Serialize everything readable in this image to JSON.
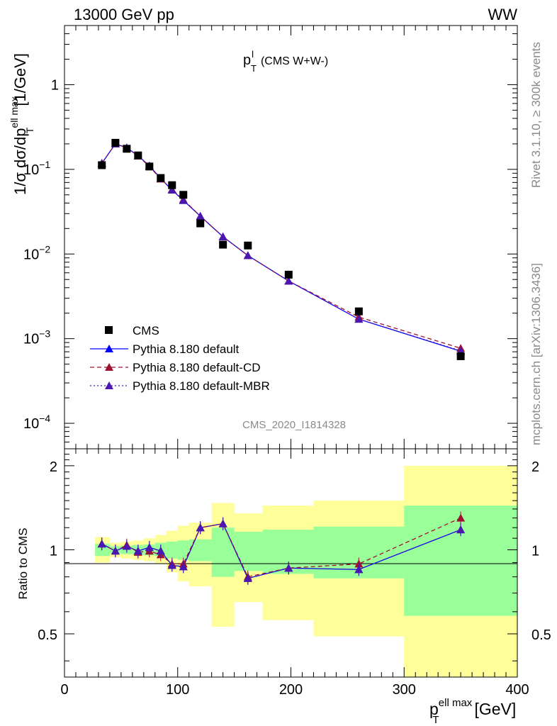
{
  "header": {
    "left": "13000 GeV pp",
    "right": "WW"
  },
  "side": {
    "rivet": "Rivet 3.1.10, ≥ 300k events",
    "mcplots": "mcplots.cern.ch [arXiv:1306.3436]"
  },
  "chart_data": [
    {
      "type": "scatter",
      "panel": "main",
      "title_main": "p",
      "title_sup": "l",
      "title_sub": "T",
      "title_rest": "(CMS W+W-)",
      "analysis_label": "CMS_2020_I1814328",
      "ylabel_pre": "1/σ dσ/dp",
      "ylabel_sup": "ell max",
      "ylabel_sub": "T",
      "ylabel_unit": "[1/GeV]",
      "xlim": [
        0,
        400
      ],
      "ylim": [
        5e-05,
        5
      ],
      "yscale": "log",
      "y_ticks": [
        {
          "v": 1,
          "label": "1"
        },
        {
          "v": 0.1,
          "base": "10",
          "exp": "−1"
        },
        {
          "v": 0.01,
          "base": "10",
          "exp": "−2"
        },
        {
          "v": 0.001,
          "base": "10",
          "exp": "−3"
        },
        {
          "v": 0.0001,
          "base": "10",
          "exp": "−4"
        }
      ],
      "legend_position": "lower-left",
      "series": [
        {
          "name": "CMS",
          "style": "marker",
          "color": "#000000",
          "x": [
            33,
            45,
            55,
            65,
            75,
            85,
            95,
            105,
            120,
            140,
            162,
            198,
            260,
            350
          ],
          "y": [
            0.112,
            0.206,
            0.175,
            0.146,
            0.108,
            0.079,
            0.065,
            0.05,
            0.023,
            0.0129,
            0.0126,
            0.0057,
            0.0021,
            0.00062
          ]
        },
        {
          "name": "Pythia 8.180 default",
          "style": "solid",
          "color": "#0000ff",
          "x": [
            33,
            45,
            55,
            65,
            75,
            85,
            95,
            105,
            120,
            140,
            162,
            198,
            260,
            350
          ],
          "y": [
            0.118,
            0.2,
            0.18,
            0.145,
            0.11,
            0.078,
            0.057,
            0.043,
            0.028,
            0.016,
            0.0096,
            0.0048,
            0.0017,
            0.00071
          ]
        },
        {
          "name": "Pythia 8.180 default-CD",
          "style": "dashed",
          "color": "#a01030",
          "x": [
            33,
            45,
            55,
            65,
            75,
            85,
            95,
            105,
            120,
            140,
            162,
            198,
            260,
            350
          ],
          "y": [
            0.118,
            0.2,
            0.18,
            0.144,
            0.108,
            0.077,
            0.058,
            0.044,
            0.028,
            0.016,
            0.0096,
            0.0048,
            0.0018,
            0.00077
          ]
        },
        {
          "name": "Pythia 8.180 default-MBR",
          "style": "dotted",
          "color": "#4a18b0",
          "x": [
            33,
            45,
            55,
            65,
            75,
            85,
            95,
            105,
            120,
            140,
            162,
            198,
            260,
            350
          ],
          "y": [
            0.118,
            0.2,
            0.18,
            0.145,
            0.11,
            0.078,
            0.057,
            0.043,
            0.028,
            0.016,
            0.0096,
            0.0048,
            0.0017,
            0.00072
          ]
        }
      ]
    },
    {
      "type": "scatter",
      "panel": "ratio",
      "ylabel": "Ratio to CMS",
      "xlabel_pre": "p",
      "xlabel_sup": "ell max",
      "xlabel_sub": "T",
      "xlabel_unit": "[GeV]",
      "xlim": [
        0,
        400
      ],
      "ylim": [
        0.35,
        2.3
      ],
      "yscale": "log",
      "x_ticks": [
        0,
        100,
        200,
        300,
        400
      ],
      "y_ticks": [
        0.5,
        1,
        2
      ],
      "bands": [
        {
          "x0": 27,
          "x1": 40,
          "green": [
            0.95,
            1.05
          ],
          "yellow": [
            0.9,
            1.11
          ]
        },
        {
          "x0": 40,
          "x1": 50,
          "green": [
            0.97,
            1.03
          ],
          "yellow": [
            0.94,
            1.06
          ]
        },
        {
          "x0": 50,
          "x1": 60,
          "green": [
            0.965,
            1.035
          ],
          "yellow": [
            0.93,
            1.07
          ]
        },
        {
          "x0": 60,
          "x1": 70,
          "green": [
            0.96,
            1.04
          ],
          "yellow": [
            0.92,
            1.08
          ]
        },
        {
          "x0": 70,
          "x1": 80,
          "green": [
            0.955,
            1.045
          ],
          "yellow": [
            0.91,
            1.1
          ]
        },
        {
          "x0": 80,
          "x1": 90,
          "green": [
            0.95,
            1.06
          ],
          "yellow": [
            0.89,
            1.13
          ]
        },
        {
          "x0": 90,
          "x1": 100,
          "green": [
            0.93,
            1.07
          ],
          "yellow": [
            0.83,
            1.17
          ]
        },
        {
          "x0": 100,
          "x1": 110,
          "green": [
            0.92,
            1.08
          ],
          "yellow": [
            0.77,
            1.22
          ]
        },
        {
          "x0": 110,
          "x1": 130,
          "green": [
            0.91,
            1.09
          ],
          "yellow": [
            0.74,
            1.25
          ]
        },
        {
          "x0": 130,
          "x1": 150,
          "green": [
            0.8,
            1.2
          ],
          "yellow": [
            0.53,
            1.47
          ]
        },
        {
          "x0": 150,
          "x1": 175,
          "green": [
            0.84,
            1.16
          ],
          "yellow": [
            0.65,
            1.35
          ]
        },
        {
          "x0": 175,
          "x1": 220,
          "green": [
            0.82,
            1.18
          ],
          "yellow": [
            0.56,
            1.44
          ]
        },
        {
          "x0": 220,
          "x1": 300,
          "green": [
            0.79,
            1.21
          ],
          "yellow": [
            0.49,
            1.5
          ]
        },
        {
          "x0": 300,
          "x1": 400,
          "green": [
            0.58,
            1.44
          ],
          "yellow": [
            0.35,
            2.0
          ]
        }
      ],
      "series": [
        {
          "name": "Pythia 8.180 default",
          "style": "solid",
          "color": "#0000ff",
          "x": [
            33,
            45,
            55,
            65,
            75,
            85,
            95,
            105,
            120,
            140,
            162,
            198,
            260,
            350
          ],
          "y": [
            1.05,
            0.99,
            1.03,
            0.99,
            1.02,
            0.99,
            0.88,
            0.87,
            1.2,
            1.24,
            0.79,
            0.86,
            0.85,
            1.18
          ]
        },
        {
          "name": "Pythia 8.180 default-CD",
          "style": "dashed",
          "color": "#a01030",
          "x": [
            33,
            45,
            55,
            65,
            75,
            85,
            95,
            105,
            120,
            140,
            162,
            198,
            260,
            350
          ],
          "y": [
            1.05,
            0.99,
            1.04,
            0.98,
            0.99,
            0.96,
            0.89,
            0.89,
            1.2,
            1.24,
            0.8,
            0.86,
            0.89,
            1.3
          ]
        },
        {
          "name": "Pythia 8.180 default-MBR",
          "style": "dotted",
          "color": "#4a18b0",
          "x": [
            33,
            45,
            55,
            65,
            75,
            85,
            95,
            105,
            120,
            140,
            162,
            198,
            260,
            350
          ],
          "y": [
            1.05,
            0.99,
            1.03,
            0.99,
            1.02,
            0.99,
            0.88,
            0.87,
            1.2,
            1.24,
            0.79,
            0.86,
            0.85,
            1.18
          ]
        }
      ]
    }
  ]
}
